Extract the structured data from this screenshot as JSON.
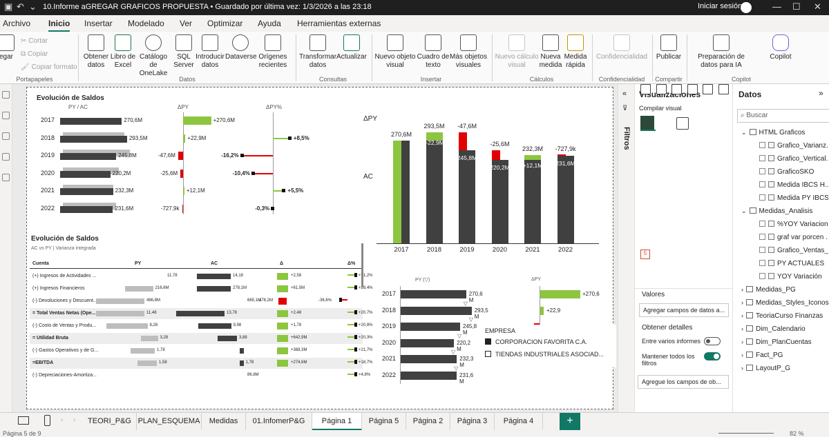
{
  "window": {
    "title": "10.Informe aGREGAR GRAFICOS PROPUESTA • Guardado por última vez: 1/3/2026 a las 23:18",
    "signin": "Iniciar sesión"
  },
  "menu": [
    "Archivo",
    "Inicio",
    "Insertar",
    "Modelado",
    "Ver",
    "Optimizar",
    "Ayuda",
    "Herramientas externas"
  ],
  "ribbon": {
    "clipboard": {
      "paste": "egar",
      "cut": "Cortar",
      "copy": "Copiar",
      "format": "Copiar formato",
      "group": "Portapapeles"
    },
    "data_buttons": [
      "Obtener datos",
      "Libro de Excel",
      "Catálogo de OneLake",
      "SQL Server",
      "Introducir datos",
      "Dataverse",
      "Orígenes recientes"
    ],
    "data_group": "Datos",
    "query_buttons": [
      "Transformar datos",
      "Actualizar"
    ],
    "query_group": "Consultas",
    "insert_buttons": [
      "Nuevo objeto visual",
      "Cuadro de texto",
      "Más objetos visuales"
    ],
    "insert_group": "Insertar",
    "calc_buttons": [
      "Nuevo cálculo visual",
      "Nueva medida",
      "Medida rápida"
    ],
    "calc_group": "Cálculos",
    "conf_button": "Confidencialidad",
    "conf_group": "Confidencialidad",
    "share_button": "Publicar",
    "share_group": "Compartir",
    "copilot_buttons": [
      "Preparación de datos para IA",
      "Copilot"
    ],
    "copilot_group": "Copilot"
  },
  "chart1": {
    "title": "Evolución de Saldos",
    "sub1": "PY / AC",
    "sub2": "ΔPY",
    "sub3": "ΔPY%",
    "years": [
      "2017",
      "2018",
      "2019",
      "2020",
      "2021",
      "2022"
    ],
    "ac_labels": [
      "270,6M",
      "293,5M",
      "245,8M",
      "220,2M",
      "232,3M",
      "231,6M"
    ],
    "dpy_labels": [
      "+270,6M",
      "+22,9M",
      "-47,6M",
      "-25,6M",
      "+12,1M",
      "-727,9k"
    ],
    "dpct_labels": [
      "",
      "+8,5%",
      "-16,2%",
      "-10,4%",
      "+5,5%",
      "-0,3%"
    ]
  },
  "chart_data": [
    {
      "type": "bar",
      "categories": [
        "2017",
        "2018",
        "2019",
        "2020",
        "2021",
        "2022"
      ],
      "series": [
        {
          "name": "AC",
          "values": [
            270.6,
            293.5,
            245.8,
            220.2,
            232.3,
            231.6
          ]
        },
        {
          "name": "ΔPY",
          "values": [
            270.6,
            22.9,
            -47.6,
            -25.6,
            12.1,
            -0.7279
          ]
        }
      ],
      "title": "Evolución de Saldos",
      "ylabel": ""
    },
    {
      "type": "bar",
      "categories": [
        "2017",
        "2018",
        "2019",
        "2020",
        "2021",
        "2022"
      ],
      "series": [
        {
          "name": "PY (▽)",
          "values": [
            270.6,
            293.5,
            245.8,
            220.2,
            232.3,
            231.6
          ]
        }
      ],
      "title": ""
    }
  ],
  "chart2": {
    "dpy": "ΔPY",
    "ac": "AC",
    "top": [
      "270,6M",
      "293,5M",
      "-47,6M",
      "-25,6M",
      "232,3M",
      "-727,9k"
    ],
    "inner": [
      "",
      "+22,9M",
      "245,8M",
      "220,2M",
      "+12,1M",
      "231,6M"
    ]
  },
  "table": {
    "title": "Evolución de Saldos",
    "subtitle": "AC vs PY | Varianza integrada",
    "headers": [
      "Cuenta",
      "PY",
      "AC",
      "Δ",
      "Δ%"
    ],
    "rows": [
      {
        "name": "(+) Ingresos de Actividades ...",
        "py": "11,78",
        "ac": "14,18",
        "d": "+2,58",
        "p": "+21,2%",
        "bold": false
      },
      {
        "name": "(+) Ingresos Financieros",
        "py": "216,6M",
        "ac": "278,1M",
        "d": "+61,5M",
        "p": "+28,4%",
        "bold": false
      },
      {
        "name": "(-) Devoluciones y Descuent...",
        "py": "486,8M",
        "ac": "665,1M",
        "d": "-178,2M",
        "p": "-36,6%",
        "bold": false
      },
      {
        "name": "= Total Ventas Netas (Ope...",
        "py": "11,48",
        "ac": "13,78",
        "d": "+2,48",
        "p": "+20,7%",
        "bold": true
      },
      {
        "name": "(-) Costo de Ventas y Produ...",
        "py": "8,28",
        "ac": "9,98",
        "d": "+1,78",
        "p": "+20,8%",
        "bold": false
      },
      {
        "name": "= Utilidad Bruta",
        "py": "3,28",
        "ac": "3,88",
        "d": "+642,9M",
        "p": "+20,3%",
        "bold": true
      },
      {
        "name": "(-) Gastos Operativos y de G...",
        "py": "1,78",
        "ac": "",
        "d": "+368,3M",
        "p": "+21,7%",
        "bold": false
      },
      {
        "name": "=EBITDA",
        "py": "1,58",
        "ac": "1,78",
        "d": "+274,6M",
        "p": "+18,7%",
        "bold": true
      },
      {
        "name": "(-) Depreciaciones-Amortiza...",
        "py": "",
        "ac": "86,8M",
        "d": "",
        "p": "+4,8%",
        "bold": false
      }
    ]
  },
  "chart3": {
    "py_title": "PY (▽)",
    "dpy_title": "ΔPY",
    "labels": [
      "270,6 M",
      "293,5 M",
      "245,8 M",
      "220,2 M",
      "232,3 M",
      "231,6 M"
    ],
    "dpy": [
      "+270,6",
      "+22,9",
      "-47,6"
    ]
  },
  "legend": {
    "title": "EMPRESA",
    "items": [
      "CORPORACION FAVORITA C.A.",
      "TIENDAS INDUSTRIALES ASOCIAD..."
    ]
  },
  "filters": {
    "label": "Filtros"
  },
  "viz": {
    "title": "Visualizaciones",
    "build": "Compilar visual",
    "values": "Valores",
    "add_fields": "Agregar campos de datos a...",
    "details": "Obtener detalles",
    "cross": "Entre varios informes",
    "keep": "Mantener todos los filtros",
    "add_fields2": "Agregue los campos de ob..."
  },
  "data": {
    "title": "Datos",
    "search": "Buscar",
    "tree": [
      {
        "label": "HTML Graficos",
        "level": 0,
        "type": "table-open"
      },
      {
        "label": "Grafico_Varianz...",
        "level": 1,
        "type": "field"
      },
      {
        "label": "Grafico_Vertical...",
        "level": 1,
        "type": "field"
      },
      {
        "label": "GraficoSKO",
        "level": 1,
        "type": "field"
      },
      {
        "label": "Medida IBCS H...",
        "level": 1,
        "type": "field"
      },
      {
        "label": "Medida PY IBCS...",
        "level": 1,
        "type": "field"
      },
      {
        "label": "Medidas_Analisis",
        "level": 0,
        "type": "table-open"
      },
      {
        "label": "%YOY Variacion%",
        "level": 1,
        "type": "field"
      },
      {
        "label": "graf var porcen ...",
        "level": 1,
        "type": "field"
      },
      {
        "label": "Grafico_Ventas_...",
        "level": 1,
        "type": "field"
      },
      {
        "label": "PY ACTUALES",
        "level": 1,
        "type": "field"
      },
      {
        "label": "YOY Variación",
        "level": 1,
        "type": "field"
      },
      {
        "label": "Medidas_PG",
        "level": 0,
        "type": "table"
      },
      {
        "label": "Medidas_Styles_Iconos",
        "level": 0,
        "type": "table"
      },
      {
        "label": "TeoriaCurso Finanzas",
        "level": 0,
        "type": "table"
      },
      {
        "label": "Dim_Calendario",
        "level": 0,
        "type": "table"
      },
      {
        "label": "Dim_PlanCuentas",
        "level": 0,
        "type": "table"
      },
      {
        "label": "Fact_PG",
        "level": 0,
        "type": "table"
      },
      {
        "label": "LayoutP_G",
        "level": 0,
        "type": "table"
      }
    ]
  },
  "tabs": [
    "TEORI_P&G",
    "PLAN_ESQUEMA",
    "Medidas",
    "01.InfomerP&G",
    "Página 1",
    "Página 5",
    "Página 2",
    "Página 3",
    "Página 4"
  ],
  "active_tab": "Página 1",
  "status": {
    "page": "Página 5 de 9",
    "zoom": "82 %"
  }
}
